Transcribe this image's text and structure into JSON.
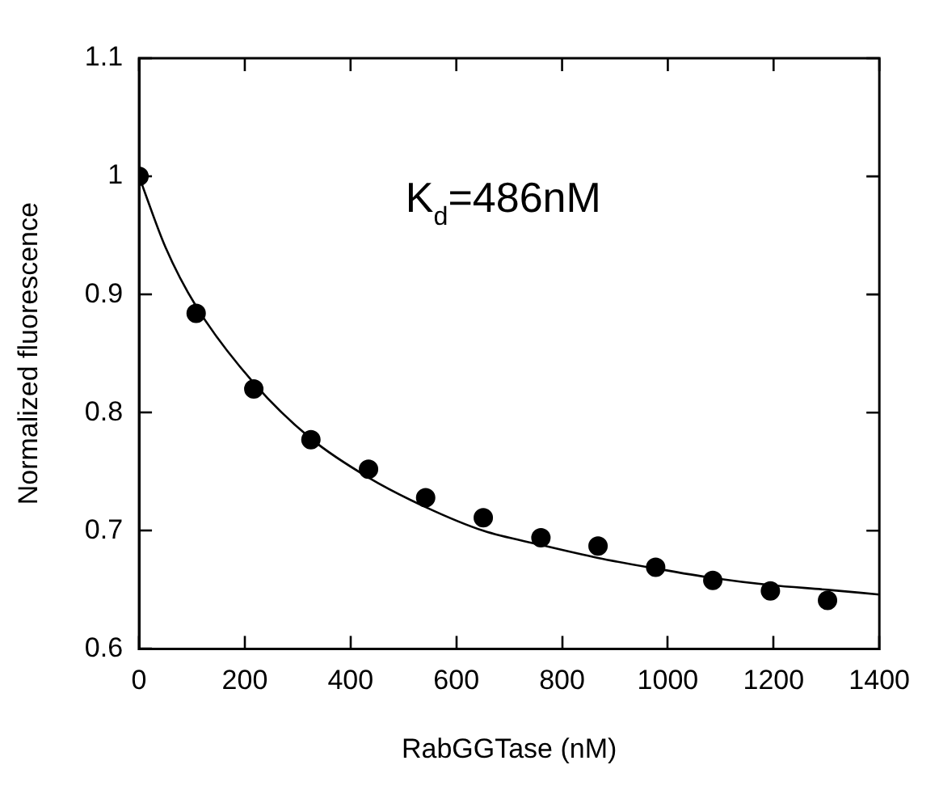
{
  "chart_data": {
    "type": "scatter",
    "xlabel": "RabGGTase (nM)",
    "ylabel": "Normalized fluorescence",
    "annotations": [
      "K$_{d}$=486nM"
    ],
    "xlim": [
      0,
      1400
    ],
    "xticks": [
      0,
      200,
      400,
      600,
      800,
      1000,
      1200,
      1400
    ],
    "ylim": [
      0.6,
      1.1
    ],
    "yticks": [
      0.6,
      0.7,
      0.8,
      0.9,
      1,
      1.1
    ],
    "grid": false,
    "legend": false,
    "marker": "circle",
    "series": [
      {
        "color": "#000000",
        "x": [
          0,
          108,
          217,
          325,
          434,
          542,
          651,
          760,
          868,
          977,
          1085,
          1194,
          1302
        ],
        "values": [
          1.0,
          0.884,
          0.82,
          0.777,
          0.752,
          0.728,
          0.711,
          0.694,
          0.687,
          0.669,
          0.658,
          0.649,
          0.641
        ]
      },
      {
        "type": "line",
        "color": "#000000",
        "marker": "none",
        "line_style": "solid",
        "x": [
          0,
          50,
          108,
          217,
          325,
          434,
          542,
          651,
          760,
          868,
          977,
          1085,
          1194,
          1302,
          1400
        ],
        "values": [
          1.0,
          0.94,
          0.89,
          0.825,
          0.778,
          0.745,
          0.72,
          0.7,
          0.688,
          0.677,
          0.668,
          0.66,
          0.654,
          0.65,
          0.646
        ]
      }
    ]
  }
}
